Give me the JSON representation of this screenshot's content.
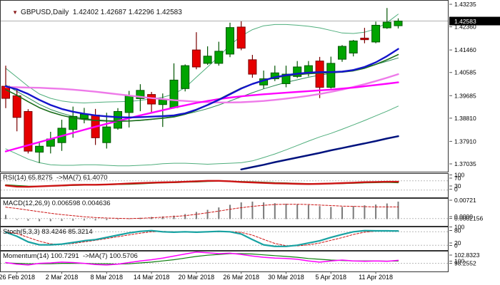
{
  "window": {
    "symbol_period": "GBPUSD,Daily",
    "ohlc_line": "1.42402 1.42687 1.42296 1.42583",
    "open": "1.42402",
    "high": "1.42687",
    "low": "1.42296",
    "close": "1.42583",
    "triangle_icon": "▼"
  },
  "price_axis": {
    "labels": [
      "1.43235",
      "1.42360",
      "1.41460",
      "1.40585",
      "1.39685",
      "1.38810",
      "1.37910",
      "1.37035"
    ],
    "current_price": "1.42583"
  },
  "time_axis": {
    "labels": [
      {
        "text": "26 Feb 2018",
        "candle_index": 1
      },
      {
        "text": "2 Mar 2018",
        "candle_index": 5
      },
      {
        "text": "8 Mar 2018",
        "candle_index": 9
      },
      {
        "text": "14 Mar 2018",
        "candle_index": 13
      },
      {
        "text": "20 Mar 2018",
        "candle_index": 17
      },
      {
        "text": "26 Mar 2018",
        "candle_index": 21
      },
      {
        "text": "30 Mar 2018",
        "candle_index": 25
      },
      {
        "text": "5 Apr 2018",
        "candle_index": 29
      },
      {
        "text": "11 Apr 2018",
        "candle_index": 33
      }
    ]
  },
  "panels": {
    "rsi": {
      "header": "RSI(14) 65.8275  ->MA(7) 61.4070",
      "axis_labels": [
        "100",
        "70",
        "30",
        "0"
      ]
    },
    "macd": {
      "header": "MACD(12,26,9) 0.006598 0.004636",
      "axis_labels": [
        "0.00721",
        "0.0000",
        "0.0002156"
      ]
    },
    "stoch": {
      "header": "Stoch(5,3,3) 83.4246 85.3214",
      "axis_labels": [
        "100",
        "80",
        "20",
        "0"
      ]
    },
    "momentum": {
      "header": "Momentum(14) 100.7291  ->MA(7) 100.5706",
      "axis_labels": [
        "102.8323",
        "100",
        "98.2552"
      ]
    }
  },
  "colors": {
    "bull": "#00a400",
    "bull_border": "#005500",
    "bear": "#e60000",
    "bear_border": "#7a0000",
    "bb_thin": "#4fae7c",
    "sma20": "#2e8b57",
    "ma_green": "#1b6e1b",
    "ma_blue": "#1414cc",
    "ma_navy": "#00127e",
    "ma_magenta": "#ff00ff",
    "ma_violet": "#ee7ae9",
    "rsi_line": "#cc1414",
    "rsi_ma": "#0e7e0e",
    "macd_bar": "#7a7a7a",
    "macd_signal": "#cc1414",
    "stoch_k": "#17a2a2",
    "stoch_d": "#cc1414",
    "mom_line": "#ff00ff",
    "mom_ma": "#0e7e0e",
    "level_dash": "#b8b8b8",
    "cur_price_line": "#b0b0b0",
    "cur_price_bg": "#000000",
    "cur_price_fg": "#ffffff",
    "panel_border": "#333333",
    "text": "#000000"
  },
  "chart_data": {
    "type": "candlestick+indicators",
    "symbol": "GBPUSD",
    "timeframe": "Daily",
    "ylim": [
      1.37035,
      1.43235
    ],
    "dates": [
      "23 Feb",
      "26 Feb",
      "27 Feb",
      "28 Feb",
      "1 Mar",
      "2 Mar",
      "5 Mar",
      "6 Mar",
      "7 Mar",
      "8 Mar",
      "9 Mar",
      "12 Mar",
      "13 Mar",
      "14 Mar",
      "15 Mar",
      "16 Mar",
      "19 Mar",
      "20 Mar",
      "21 Mar",
      "22 Mar",
      "23 Mar",
      "26 Mar",
      "27 Mar",
      "28 Mar",
      "29 Mar",
      "30 Mar",
      "2 Apr",
      "3 Apr",
      "4 Apr",
      "5 Apr",
      "6 Apr",
      "9 Apr",
      "10 Apr",
      "11 Apr",
      "12 Apr",
      "13 Apr"
    ],
    "candles": [
      [
        1.4005,
        1.4085,
        1.392,
        1.3958
      ],
      [
        1.3968,
        1.3996,
        1.383,
        1.3884
      ],
      [
        1.3907,
        1.3916,
        1.3744,
        1.3753
      ],
      [
        1.3749,
        1.379,
        1.3707,
        1.3772
      ],
      [
        1.3772,
        1.3828,
        1.3744,
        1.38
      ],
      [
        1.3786,
        1.3875,
        1.3754,
        1.3842
      ],
      [
        1.3837,
        1.3926,
        1.3805,
        1.3888
      ],
      [
        1.3879,
        1.3921,
        1.3861,
        1.3897
      ],
      [
        1.3893,
        1.3917,
        1.3777,
        1.3805
      ],
      [
        1.3786,
        1.3902,
        1.3763,
        1.3847
      ],
      [
        1.3842,
        1.392,
        1.3836,
        1.3907
      ],
      [
        1.3903,
        1.3987,
        1.3845,
        1.3968
      ],
      [
        1.3957,
        1.4013,
        1.3908,
        1.3989
      ],
      [
        1.3973,
        1.3983,
        1.3903,
        1.3936
      ],
      [
        1.3934,
        1.3977,
        1.3847,
        1.3953
      ],
      [
        1.3922,
        1.4094,
        1.3918,
        1.4029
      ],
      [
        1.3996,
        1.409,
        1.3985,
        1.4085
      ],
      [
        1.4146,
        1.4215,
        1.4071,
        1.408
      ],
      [
        1.4094,
        1.416,
        1.4088,
        1.4122
      ],
      [
        1.4094,
        1.4178,
        1.4085,
        1.4141
      ],
      [
        1.413,
        1.4252,
        1.4118,
        1.4233
      ],
      [
        1.4235,
        1.4257,
        1.4145,
        1.4153
      ],
      [
        1.4108,
        1.4127,
        1.4038,
        1.4052
      ],
      [
        1.401,
        1.4066,
        1.3996,
        1.4034
      ],
      [
        1.4034,
        1.4085,
        1.4025,
        1.4057
      ],
      [
        1.4015,
        1.4085,
        1.4001,
        1.4052
      ],
      [
        1.4043,
        1.4103,
        1.4037,
        1.408
      ],
      [
        1.4057,
        1.4103,
        1.4043,
        1.4085
      ],
      [
        1.4103,
        1.4119,
        1.3959,
        1.4001
      ],
      [
        1.4001,
        1.412,
        1.3996,
        1.4094
      ],
      [
        1.411,
        1.4165,
        1.41,
        1.416
      ],
      [
        1.4134,
        1.4185,
        1.4121,
        1.4181
      ],
      [
        1.4192,
        1.4232,
        1.4172,
        1.4186
      ],
      [
        1.4177,
        1.4256,
        1.4172,
        1.4242
      ],
      [
        1.4232,
        1.4309,
        1.4228,
        1.4254
      ],
      [
        1.42402,
        1.42687,
        1.42296,
        1.42583
      ]
    ],
    "overlays": {
      "bb_upper": [
        1.4075,
        1.404,
        1.4005,
        1.3975,
        1.3958,
        1.3948,
        1.3942,
        1.394,
        1.3942,
        1.3944,
        1.3945,
        1.3946,
        1.395,
        1.3956,
        1.3962,
        1.3975,
        1.4,
        1.404,
        1.408,
        1.412,
        1.4165,
        1.42,
        1.4225,
        1.424,
        1.4245,
        1.4245,
        1.4242,
        1.4238,
        1.4232,
        1.4222,
        1.4212,
        1.421,
        1.4215,
        1.4228,
        1.4252,
        1.4285
      ],
      "bb_middle": [
        1.401,
        1.3985,
        1.396,
        1.3935,
        1.3915,
        1.39,
        1.3888,
        1.388,
        1.3875,
        1.3872,
        1.387,
        1.387,
        1.3872,
        1.3876,
        1.3882,
        1.3888,
        1.3896,
        1.3906,
        1.3918,
        1.3932,
        1.3948,
        1.3964,
        1.398,
        1.3995,
        1.4008,
        1.402,
        1.403,
        1.404,
        1.4048,
        1.4055,
        1.4062,
        1.407,
        1.408,
        1.409,
        1.4102,
        1.4115
      ],
      "bb_lower": [
        1.3762,
        1.3742,
        1.3722,
        1.3708,
        1.37,
        1.3698,
        1.3698,
        1.37,
        1.37,
        1.3698,
        1.3696,
        1.3696,
        1.3698,
        1.37,
        1.3704,
        1.3706,
        1.3706,
        1.3704,
        1.3702,
        1.3704,
        1.3706,
        1.3708,
        1.3715,
        1.3728,
        1.3742,
        1.3758,
        1.3775,
        1.3792,
        1.3808,
        1.3822,
        1.3838,
        1.3855,
        1.3872,
        1.389,
        1.3908,
        1.3928
      ],
      "ema_blue": [
        1.4005,
        1.3993,
        1.3975,
        1.3952,
        1.3932,
        1.3917,
        1.3906,
        1.3898,
        1.3892,
        1.3888,
        1.3885,
        1.3884,
        1.3885,
        1.3887,
        1.3889,
        1.3892,
        1.39,
        1.3914,
        1.3932,
        1.3952,
        1.3974,
        1.3996,
        1.4014,
        1.4028,
        1.404,
        1.4048,
        1.4054,
        1.4058,
        1.406,
        1.406,
        1.4062,
        1.4068,
        1.408,
        1.4098,
        1.4122,
        1.415
      ],
      "ma_green": [
        1.3992,
        1.397,
        1.3945,
        1.3922,
        1.3905,
        1.3892,
        1.3882,
        1.3876,
        1.3872,
        1.387,
        1.3869,
        1.387,
        1.3873,
        1.3877,
        1.3881,
        1.3886,
        1.3896,
        1.3912,
        1.3932,
        1.3954,
        1.3976,
        1.3998,
        1.4015,
        1.4028,
        1.4038,
        1.4045,
        1.405,
        1.4054,
        1.4056,
        1.4058,
        1.406,
        1.4065,
        1.4075,
        1.409,
        1.4108,
        1.4128
      ],
      "ma_magenta": [
        1.3752,
        1.3764,
        1.3776,
        1.3788,
        1.38,
        1.3812,
        1.3824,
        1.3836,
        1.3848,
        1.3859,
        1.387,
        1.3881,
        1.3892,
        1.3902,
        1.3912,
        1.3922,
        1.3931,
        1.394,
        1.3948,
        1.3955,
        1.3961,
        1.3966,
        1.397,
        1.3974,
        1.3977,
        1.398,
        1.3983,
        1.3986,
        1.3989,
        1.3992,
        1.3996,
        1.4,
        1.4005,
        1.401,
        1.4015,
        1.402
      ],
      "ma_violet": [
        1.4002,
        1.4001,
        1.4,
        1.3999,
        1.3997,
        1.3995,
        1.3992,
        1.3988,
        1.3984,
        1.3979,
        1.3974,
        1.3969,
        1.3964,
        1.3959,
        1.3955,
        1.3951,
        1.3948,
        1.3945,
        1.3943,
        1.3942,
        1.3942,
        1.3943,
        1.3945,
        1.3948,
        1.3952,
        1.3957,
        1.3962,
        1.3968,
        1.3975,
        1.3983,
        1.3992,
        1.4002,
        1.4013,
        1.4025,
        1.4038,
        1.4052
      ],
      "sma200_navy": {
        "start_index": 21,
        "values": [
          1.3682,
          1.3691,
          1.37,
          1.371,
          1.3719,
          1.3728,
          1.3737,
          1.3746,
          1.3756,
          1.3765,
          1.3774,
          1.3783,
          1.3792,
          1.3802,
          1.3811
        ]
      }
    },
    "rsi": {
      "ylim": [
        0,
        100
      ],
      "levels": [
        70,
        30
      ],
      "rsi": [
        50,
        45,
        44,
        46,
        48,
        50,
        52,
        53,
        53,
        54,
        56,
        58,
        60,
        62,
        63,
        64,
        66,
        68,
        70,
        70,
        68,
        65,
        63,
        61,
        59,
        58,
        57,
        56,
        57,
        58,
        60,
        62,
        64,
        65,
        66,
        65.83
      ],
      "ma": [
        53,
        50,
        47,
        46,
        47,
        48,
        50,
        51,
        52,
        53,
        54,
        55,
        57,
        59,
        61,
        62,
        64,
        65,
        67,
        68,
        68,
        67,
        66,
        64,
        62,
        61,
        59,
        58,
        57,
        57,
        58,
        59,
        61,
        62,
        63,
        61.41
      ]
    },
    "macd": {
      "ylim": [
        -0.001,
        0.00721
      ],
      "level": 0.0002156,
      "histogram": [
        0.0016,
        -0.0003,
        -0.0006,
        -0.0008,
        -0.0008,
        -0.0007,
        -0.0006,
        -0.0005,
        -0.0005,
        -0.0004,
        -0.0002,
        0.0002,
        0.0005,
        0.0008,
        0.001,
        0.0013,
        0.0019,
        0.0027,
        0.0035,
        0.0044,
        0.0054,
        0.0063,
        0.0066,
        0.0063,
        0.006,
        0.0058,
        0.0056,
        0.0053,
        0.0049,
        0.0046,
        0.0046,
        0.0049,
        0.0052,
        0.0055,
        0.0059,
        0.0066
      ],
      "signal": [
        0.0045,
        0.004,
        0.0034,
        0.0028,
        0.0022,
        0.0017,
        0.0013,
        0.0009,
        0.0006,
        0.0004,
        0.0003,
        0.0002,
        0.0003,
        0.0005,
        0.0007,
        0.001,
        0.0013,
        0.0018,
        0.0024,
        0.003,
        0.0037,
        0.0043,
        0.0048,
        0.0052,
        0.0055,
        0.0056,
        0.0056,
        0.0055,
        0.0053,
        0.0051,
        0.0049,
        0.0048,
        0.0047,
        0.0046,
        0.0046,
        0.0046
      ]
    },
    "stoch": {
      "ylim": [
        0,
        100
      ],
      "levels": [
        80,
        20
      ],
      "k": [
        78,
        60,
        35,
        22,
        22,
        25,
        32,
        40,
        45,
        55,
        65,
        75,
        82,
        85,
        80,
        78,
        80,
        78,
        80,
        82,
        80,
        70,
        45,
        22,
        15,
        15,
        20,
        30,
        40,
        55,
        68,
        80,
        85,
        84,
        84,
        83.42
      ],
      "d": [
        80,
        72,
        55,
        38,
        26,
        24,
        28,
        35,
        42,
        50,
        58,
        66,
        74,
        80,
        82,
        80,
        79,
        79,
        79,
        80,
        81,
        77,
        65,
        46,
        28,
        18,
        17,
        22,
        30,
        42,
        54,
        68,
        78,
        83,
        84,
        85.32
      ]
    },
    "momentum": {
      "ylim": [
        98.2552,
        102.8323
      ],
      "level": 100,
      "momentum": [
        100.2,
        99.8,
        99.6,
        100.0,
        100.1,
        100.3,
        100.2,
        100.0,
        99.7,
        99.6,
        99.8,
        100.2,
        100.6,
        100.9,
        101.3,
        101.8,
        102.3,
        102.8,
        102.6,
        102.4,
        102.5,
        102.2,
        101.8,
        101.5,
        101.3,
        101.2,
        101.0,
        100.6,
        100.3,
        100.6,
        100.8,
        100.6,
        100.5,
        100.6,
        100.5,
        100.73
      ],
      "ma": [
        100.1,
        100.0,
        99.9,
        99.9,
        99.9,
        100.0,
        100.0,
        100.0,
        99.9,
        99.9,
        99.8,
        99.9,
        100.1,
        100.3,
        100.6,
        100.9,
        101.3,
        101.7,
        102.0,
        102.2,
        102.4,
        102.4,
        102.3,
        102.1,
        101.9,
        101.7,
        101.5,
        101.2,
        101.0,
        100.8,
        100.7,
        100.6,
        100.6,
        100.6,
        100.55,
        100.57
      ]
    }
  }
}
